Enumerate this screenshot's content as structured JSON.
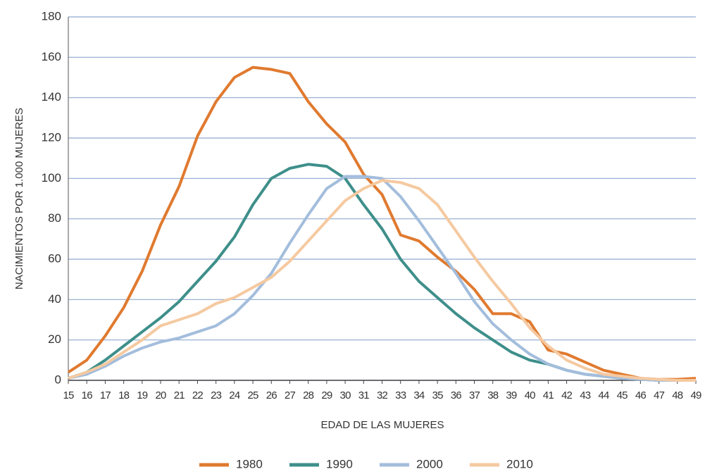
{
  "chart_data": {
    "type": "line",
    "y_label": "NACIMIENTOS POR 1.000 MUJERES",
    "x_label": "EDAD DE LAS MUJERES",
    "x": [
      15,
      16,
      17,
      18,
      19,
      20,
      21,
      22,
      23,
      24,
      25,
      26,
      27,
      28,
      29,
      30,
      31,
      32,
      33,
      34,
      35,
      36,
      37,
      38,
      39,
      40,
      41,
      42,
      43,
      44,
      45,
      46,
      47,
      48,
      49
    ],
    "xlim": [
      15,
      49
    ],
    "xticks": [
      15,
      16,
      17,
      18,
      19,
      20,
      21,
      22,
      23,
      24,
      25,
      26,
      27,
      28,
      29,
      30,
      31,
      32,
      33,
      34,
      35,
      36,
      37,
      38,
      39,
      40,
      41,
      42,
      43,
      44,
      45,
      46,
      47,
      48,
      49
    ],
    "ylim": [
      0,
      180
    ],
    "yticks": [
      0,
      20,
      40,
      60,
      80,
      100,
      120,
      140,
      160,
      180
    ],
    "grid": true,
    "legend": "bottom",
    "series": [
      {
        "name": "1980",
        "color": "#e07a2f",
        "values": [
          4,
          10,
          22,
          36,
          54,
          77,
          96,
          121,
          138,
          150,
          155,
          154,
          152,
          138,
          127,
          118,
          102,
          92,
          72,
          69,
          61,
          54,
          45,
          33,
          33,
          29,
          15,
          13,
          9,
          5,
          3,
          1,
          0.5,
          0.5,
          1
        ]
      },
      {
        "name": "1990",
        "color": "#3e8f8a",
        "values": [
          1,
          4,
          10,
          17,
          24,
          31,
          39,
          49,
          59,
          71,
          87,
          100,
          105,
          107,
          106,
          100,
          87,
          75,
          60,
          49,
          41,
          33,
          26,
          20,
          14,
          10,
          8,
          5,
          3,
          2,
          1,
          0.5,
          0,
          0,
          0
        ]
      },
      {
        "name": "2000",
        "color": "#a3bddc",
        "values": [
          1,
          3,
          7,
          12,
          16,
          19,
          21,
          24,
          27,
          33,
          42,
          53,
          68,
          82,
          95,
          101,
          101,
          100,
          91,
          79,
          66,
          53,
          39,
          28,
          20,
          13,
          8,
          5,
          3,
          2,
          1,
          0.5,
          0,
          0,
          0
        ]
      },
      {
        "name": "2010",
        "color": "#f5c9a0",
        "values": [
          1,
          4,
          8,
          14,
          20,
          27,
          30,
          33,
          38,
          41,
          46,
          51,
          59,
          69,
          79,
          89,
          95,
          99,
          98,
          95,
          87,
          74,
          61,
          49,
          38,
          26,
          17,
          10,
          6,
          3,
          2,
          1,
          0.5,
          0,
          0
        ]
      }
    ]
  }
}
